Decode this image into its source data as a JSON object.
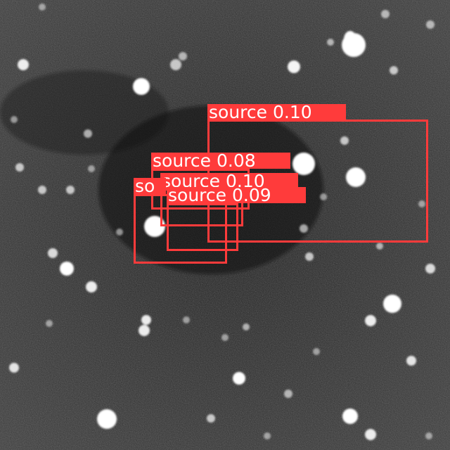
{
  "image": {
    "description_kind": "grayscale astronomical field with bright point sources",
    "background_color": "#2a2a2a",
    "box_color": "#ff3b3b",
    "label_text_color": "#ffffff"
  },
  "detections": [
    {
      "label": "source 0.10"
    },
    {
      "label": "source 0.08"
    },
    {
      "label": "source 0.10"
    },
    {
      "label": "so"
    },
    {
      "label": "source 0.09"
    }
  ]
}
